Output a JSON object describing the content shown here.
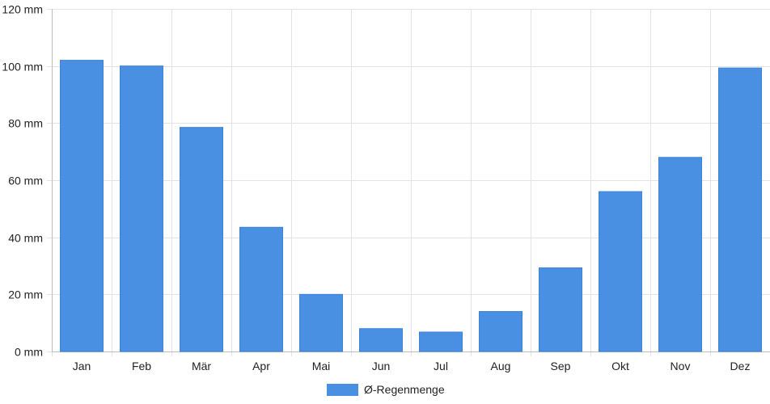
{
  "chart_data": {
    "type": "bar",
    "categories": [
      "Jan",
      "Feb",
      "Mär",
      "Apr",
      "Mai",
      "Jun",
      "Jul",
      "Aug",
      "Sep",
      "Okt",
      "Nov",
      "Dez"
    ],
    "series": [
      {
        "name": "Ø-Regenmenge",
        "values": [
          102,
          100,
          78.5,
          43.5,
          20,
          8,
          6.8,
          14,
          29.3,
          56,
          68,
          99.3
        ],
        "color": "#4a90e2"
      }
    ],
    "ylim": [
      0,
      120
    ],
    "yticks": [
      0,
      20,
      40,
      60,
      80,
      100,
      120
    ],
    "ytick_labels": [
      "0 mm",
      "20 mm",
      "40 mm",
      "60 mm",
      "80 mm",
      "100 mm",
      "120 mm"
    ],
    "grid": true,
    "legend_position": "bottom"
  }
}
